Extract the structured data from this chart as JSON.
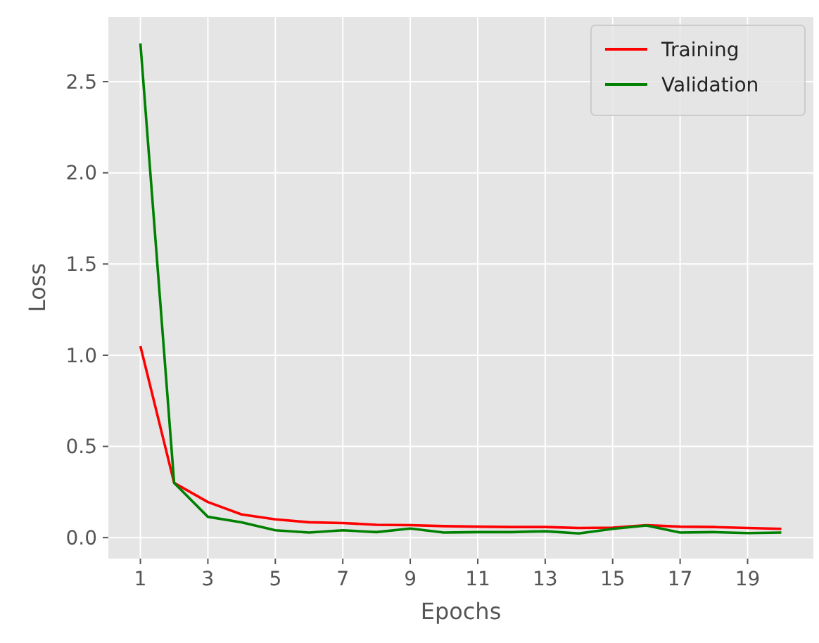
{
  "chart_data": {
    "type": "line",
    "xlabel": "Epochs",
    "ylabel": "Loss",
    "x": [
      1,
      2,
      3,
      4,
      5,
      6,
      7,
      8,
      9,
      10,
      11,
      12,
      13,
      14,
      15,
      16,
      17,
      18,
      19,
      20
    ],
    "xlim": [
      0.05,
      20.95
    ],
    "xticks": [
      1,
      3,
      5,
      7,
      9,
      11,
      13,
      15,
      17,
      19
    ],
    "ylim": [
      -0.115,
      2.855
    ],
    "yticks": [
      {
        "value": 0,
        "label": "0.0"
      },
      {
        "value": 0.5,
        "label": "0.5"
      },
      {
        "value": 1,
        "label": "1.0"
      },
      {
        "value": 1.5,
        "label": "1.5"
      },
      {
        "value": 2,
        "label": "2.0"
      },
      {
        "value": 2.5,
        "label": "2.5"
      }
    ],
    "grid": true,
    "legend": "top right",
    "line_style": "solid",
    "series": [
      {
        "name": "Training",
        "color": "#ff0000",
        "values": [
          1.05,
          0.3,
          0.195,
          0.127,
          0.1,
          0.084,
          0.08,
          0.07,
          0.068,
          0.063,
          0.06,
          0.058,
          0.058,
          0.053,
          0.055,
          0.068,
          0.06,
          0.058,
          0.053,
          0.048
        ]
      },
      {
        "name": "Validation",
        "color": "#008000",
        "values": [
          2.71,
          0.3,
          0.114,
          0.084,
          0.04,
          0.028,
          0.04,
          0.03,
          0.05,
          0.028,
          0.03,
          0.03,
          0.035,
          0.023,
          0.048,
          0.066,
          0.028,
          0.03,
          0.025,
          0.028
        ]
      }
    ]
  }
}
